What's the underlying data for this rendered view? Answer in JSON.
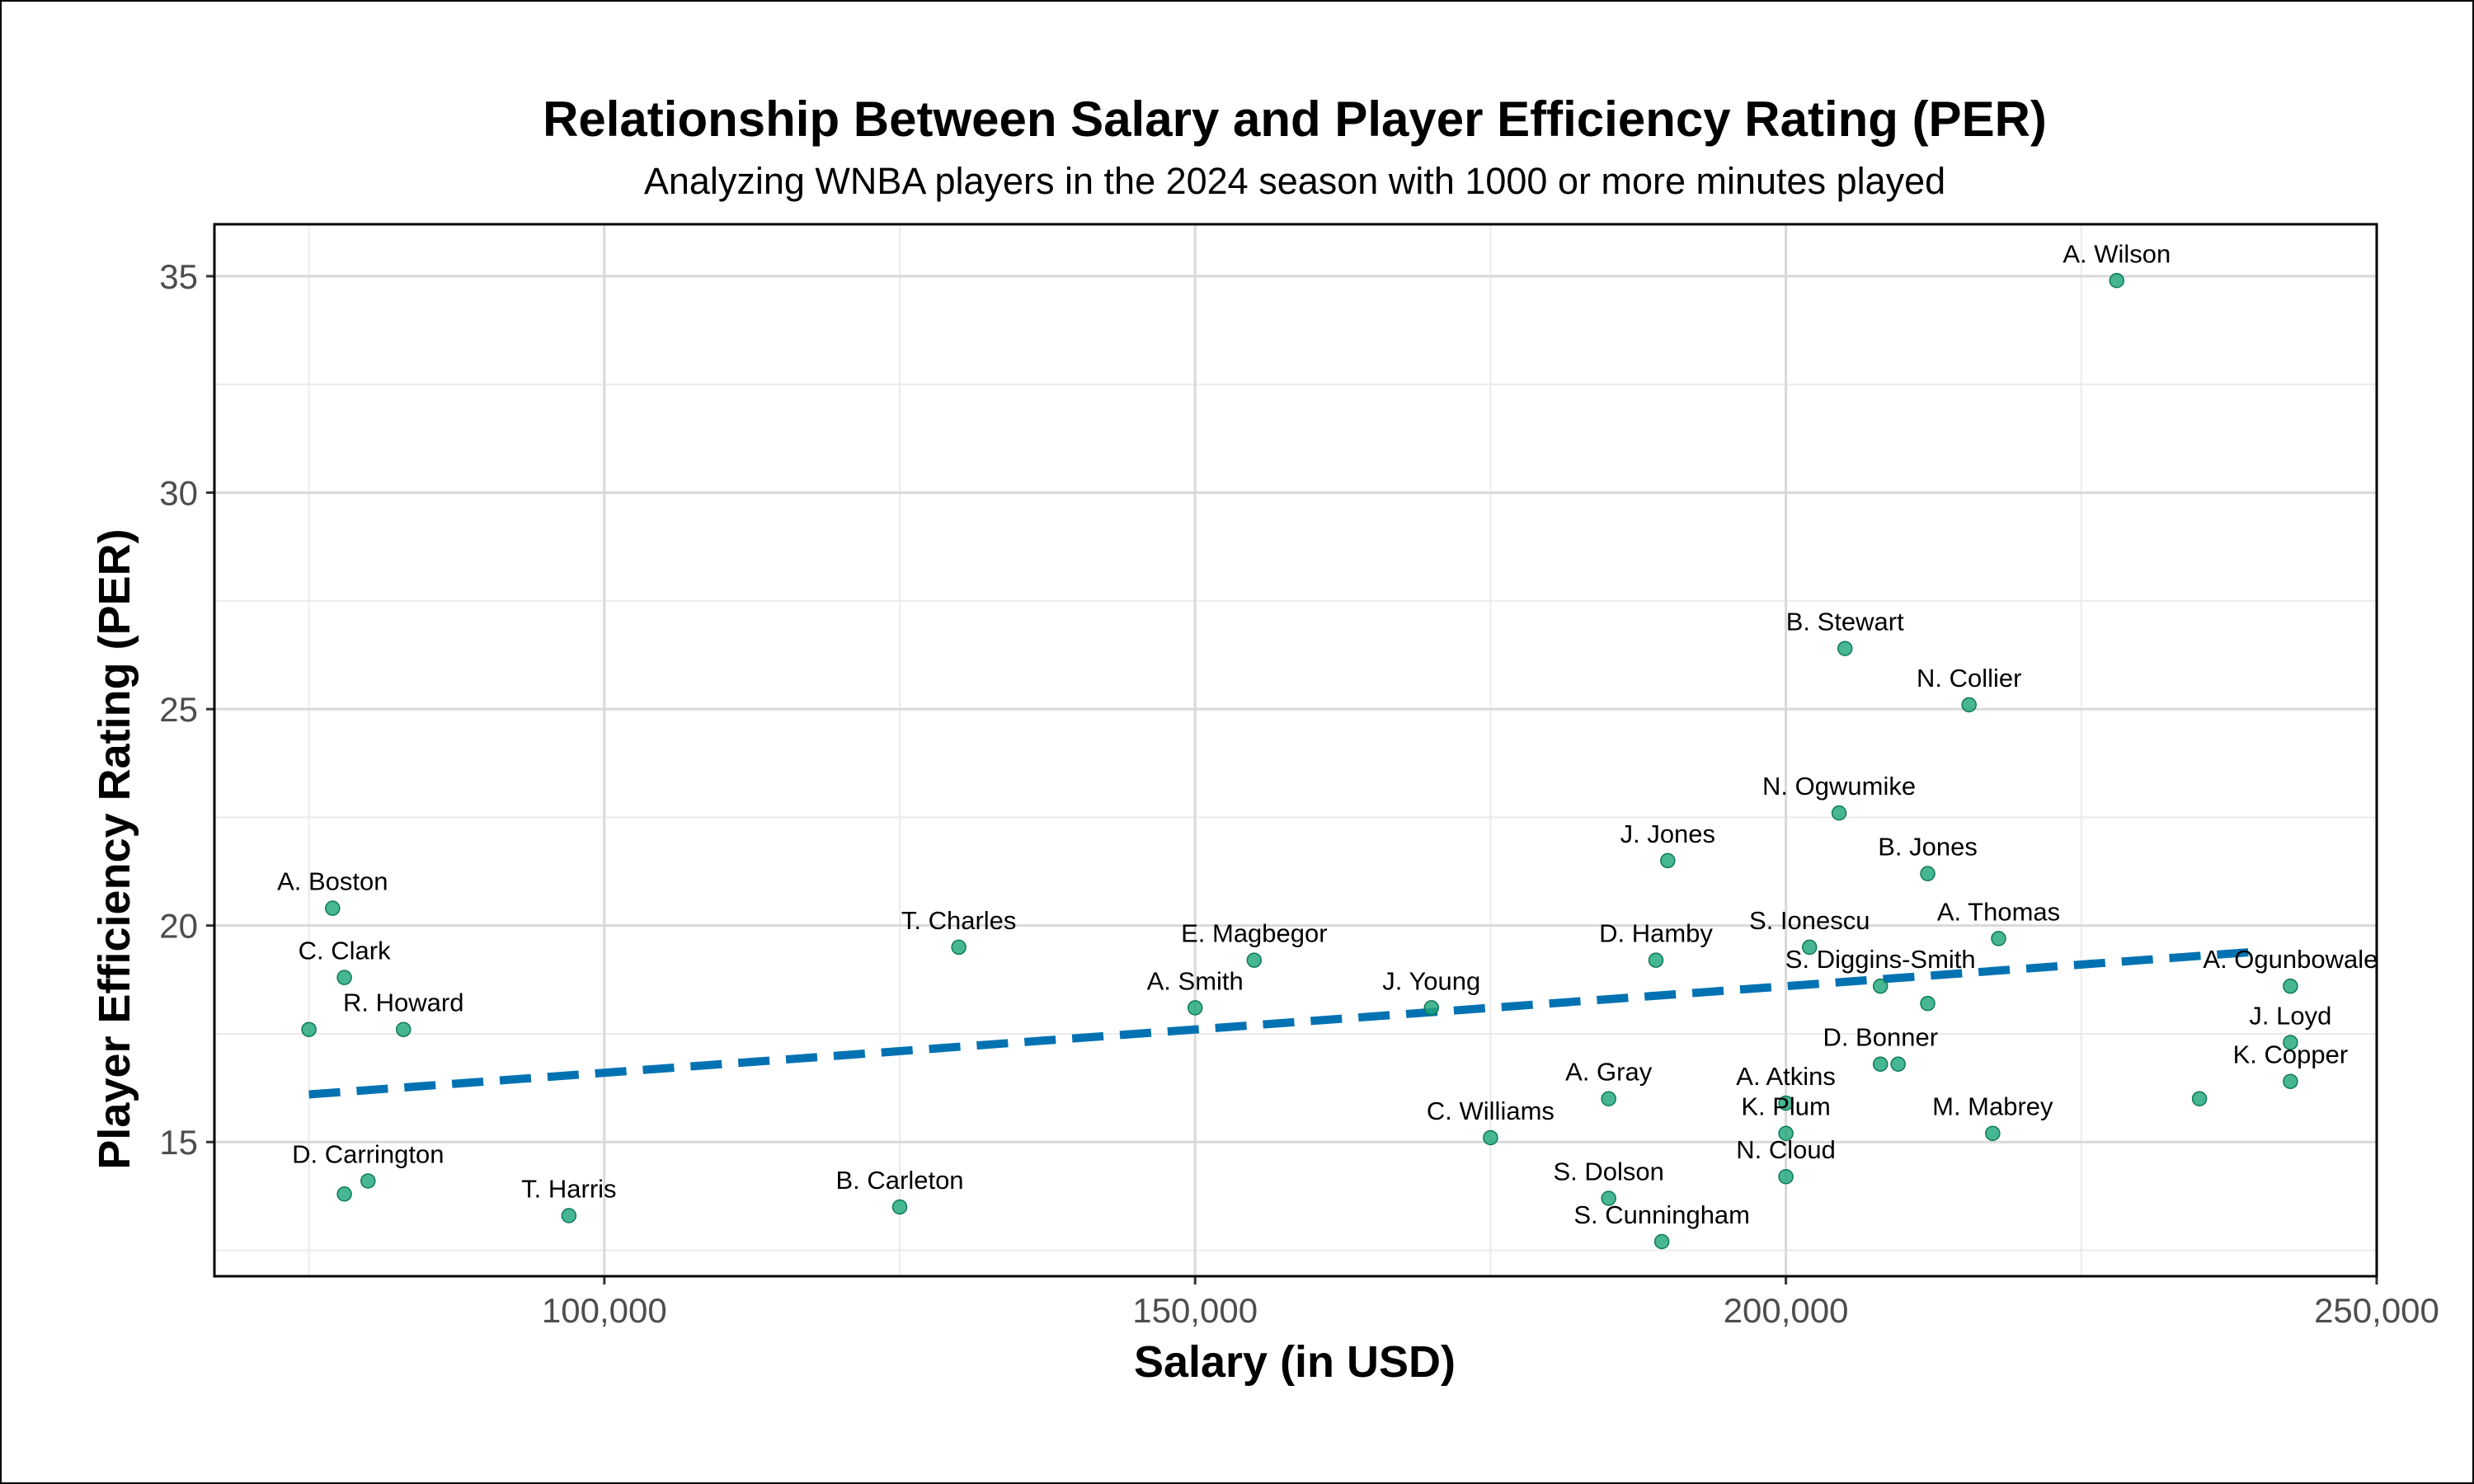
{
  "chart_data": {
    "type": "scatter",
    "title": "Relationship Between Salary and Player Efficiency Rating (PER)",
    "subtitle": "Analyzing WNBA players in the 2024 season with 1000 or more minutes played",
    "xlabel": "Salary (in USD)",
    "ylabel": "Player Efficiency Rating (PER)",
    "xlim": [
      67000,
      250000
    ],
    "ylim": [
      11.9,
      36.2
    ],
    "x_ticks": [
      100000,
      150000,
      200000,
      250000
    ],
    "x_tick_labels": [
      "100,000",
      "150,000",
      "200,000",
      "250,000"
    ],
    "y_ticks": [
      15,
      20,
      25,
      30,
      35
    ],
    "y_tick_labels": [
      "15",
      "20",
      "25",
      "30",
      "35"
    ],
    "grid": true,
    "point_color": "#1FA67A",
    "trend_color": "#0072B2",
    "trend_line": {
      "style": "dashed",
      "x": [
        75000,
        240000
      ],
      "y": [
        16.1,
        19.4
      ]
    },
    "points": [
      {
        "x": 228000,
        "y": 34.9,
        "label": "A. Wilson"
      },
      {
        "x": 205000,
        "y": 26.4,
        "label": "B. Stewart"
      },
      {
        "x": 215500,
        "y": 25.1,
        "label": "N. Collier"
      },
      {
        "x": 204500,
        "y": 22.6,
        "label": "N. Ogwumike"
      },
      {
        "x": 190000,
        "y": 21.5,
        "label": "J. Jones"
      },
      {
        "x": 212000,
        "y": 21.2,
        "label": "B. Jones"
      },
      {
        "x": 77000,
        "y": 20.4,
        "label": "A. Boston"
      },
      {
        "x": 130000,
        "y": 19.5,
        "label": "T. Charles"
      },
      {
        "x": 202000,
        "y": 19.5,
        "label": "S. Ionescu"
      },
      {
        "x": 218000,
        "y": 19.7,
        "label": "A. Thomas"
      },
      {
        "x": 155000,
        "y": 19.2,
        "label": "E. Magbegor"
      },
      {
        "x": 189000,
        "y": 19.2,
        "label": "D. Hamby"
      },
      {
        "x": 78000,
        "y": 18.8,
        "label": "C. Clark"
      },
      {
        "x": 208000,
        "y": 18.6,
        "label": "S. Diggins-Smith"
      },
      {
        "x": 212000,
        "y": 18.2,
        "label": ""
      },
      {
        "x": 242700,
        "y": 18.6,
        "label": "A. Ogunbowale"
      },
      {
        "x": 150000,
        "y": 18.1,
        "label": "A. Smith"
      },
      {
        "x": 170000,
        "y": 18.1,
        "label": "J. Young"
      },
      {
        "x": 75000,
        "y": 17.6,
        "label": ""
      },
      {
        "x": 83000,
        "y": 17.6,
        "label": "R. Howard"
      },
      {
        "x": 242700,
        "y": 17.3,
        "label": "J. Loyd"
      },
      {
        "x": 208000,
        "y": 16.8,
        "label": "D. Bonner"
      },
      {
        "x": 209500,
        "y": 16.8,
        "label": ""
      },
      {
        "x": 242700,
        "y": 16.4,
        "label": "K. Copper"
      },
      {
        "x": 235000,
        "y": 16.0,
        "label": ""
      },
      {
        "x": 185000,
        "y": 16.0,
        "label": "A. Gray"
      },
      {
        "x": 200000,
        "y": 15.9,
        "label": "A. Atkins"
      },
      {
        "x": 200000,
        "y": 15.2,
        "label": "K. Plum"
      },
      {
        "x": 217500,
        "y": 15.2,
        "label": "M. Mabrey"
      },
      {
        "x": 175000,
        "y": 15.1,
        "label": "C. Williams"
      },
      {
        "x": 200000,
        "y": 14.2,
        "label": "N. Cloud"
      },
      {
        "x": 80000,
        "y": 14.1,
        "label": "D. Carrington"
      },
      {
        "x": 78000,
        "y": 13.8,
        "label": ""
      },
      {
        "x": 185000,
        "y": 13.7,
        "label": "S. Dolson"
      },
      {
        "x": 125000,
        "y": 13.5,
        "label": "B. Carleton"
      },
      {
        "x": 97000,
        "y": 13.3,
        "label": "T. Harris"
      },
      {
        "x": 189500,
        "y": 12.7,
        "label": "S. Cunningham"
      }
    ]
  }
}
